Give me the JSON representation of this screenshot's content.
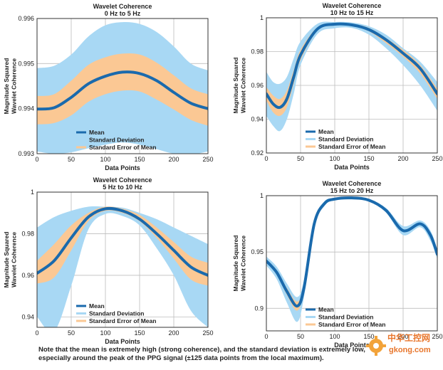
{
  "chart_data": [
    {
      "type": "line",
      "title": "Wavelet Coherence",
      "subtitle": "0 Hz to 5 Hz",
      "xlabel": "Data Points",
      "ylabel": [
        "Magnitude Squared",
        "Wavelet Coherence"
      ],
      "xlim": [
        0,
        250
      ],
      "ylim": [
        0.993,
        0.996
      ],
      "xticks": [
        0,
        50,
        100,
        150,
        200,
        250
      ],
      "xtick_labels": [
        "0",
        "50",
        "100",
        "150",
        "200",
        "250"
      ],
      "yticks": [
        0.993,
        0.994,
        0.995,
        0.996
      ],
      "ytick_labels": [
        "0.993",
        "0.994",
        "0.995",
        "0.996"
      ],
      "grid": true,
      "legend": "bottom-center",
      "x": [
        0,
        25,
        50,
        75,
        100,
        125,
        150,
        175,
        200,
        225,
        250
      ],
      "series": [
        {
          "name": "Mean",
          "color": "#1a6aad",
          "values": [
            0.99399,
            0.99402,
            0.99425,
            0.99455,
            0.99472,
            0.99481,
            0.99478,
            0.99462,
            0.99436,
            0.99412,
            0.994
          ]
        },
        {
          "name": "Standard Deviation",
          "color": "#a8d8f4",
          "lower": [
            0.99305,
            0.993,
            0.99303,
            0.99312,
            0.9932,
            0.99325,
            0.9932,
            0.9931,
            0.993,
            0.99298,
            0.99305
          ],
          "upper": [
            0.9949,
            0.99495,
            0.9952,
            0.9956,
            0.99585,
            0.99592,
            0.99588,
            0.9957,
            0.99538,
            0.995,
            0.99485
          ]
        },
        {
          "name": "Standard Error of Mean",
          "color": "#fbc894",
          "lower": [
            0.99365,
            0.99368,
            0.99385,
            0.99415,
            0.99432,
            0.9944,
            0.99438,
            0.9942,
            0.99398,
            0.99375,
            0.99362
          ],
          "upper": [
            0.99428,
            0.99432,
            0.99462,
            0.99497,
            0.99514,
            0.99522,
            0.9952,
            0.99502,
            0.99474,
            0.99445,
            0.99432
          ]
        }
      ]
    },
    {
      "type": "line",
      "title": "Wavelet Coherence",
      "subtitle": "10 Hz to 15 Hz",
      "xlabel": "Data Points",
      "ylabel": [
        "Magnitude Squared",
        "Wavelet Coherence"
      ],
      "xlim": [
        0,
        250
      ],
      "ylim": [
        0.92,
        1.0
      ],
      "xticks": [
        0,
        50,
        100,
        150,
        200,
        250
      ],
      "xtick_labels": [
        "0",
        "50",
        "100",
        "150",
        "200",
        "250"
      ],
      "yticks": [
        0.92,
        0.94,
        0.96,
        0.98,
        1.0
      ],
      "ytick_labels": [
        "0.92",
        "0.94",
        "0.96",
        "0.98",
        "1"
      ],
      "grid": true,
      "legend": "bottom-center",
      "x": [
        0,
        10,
        20,
        30,
        40,
        50,
        75,
        100,
        125,
        150,
        175,
        200,
        225,
        250
      ],
      "series": [
        {
          "name": "Mean",
          "color": "#1a6aad",
          "values": [
            0.955,
            0.949,
            0.947,
            0.952,
            0.965,
            0.978,
            0.9935,
            0.9962,
            0.9958,
            0.993,
            0.987,
            0.979,
            0.97,
            0.955
          ]
        },
        {
          "name": "Standard Deviation",
          "color": "#a8d8f4",
          "lower": [
            0.942,
            0.936,
            0.933,
            0.94,
            0.955,
            0.972,
            0.9905,
            0.9938,
            0.994,
            0.99,
            0.982,
            0.972,
            0.96,
            0.945
          ],
          "upper": [
            0.968,
            0.962,
            0.961,
            0.965,
            0.976,
            0.986,
            0.9965,
            0.9975,
            0.9972,
            0.995,
            0.99,
            0.982,
            0.974,
            0.962
          ]
        },
        {
          "name": "Standard Error of Mean",
          "color": "#fbc894",
          "lower": [
            0.951,
            0.944,
            0.942,
            0.947,
            0.961,
            0.975,
            0.9925,
            0.9955,
            0.9952,
            0.992,
            0.985,
            0.977,
            0.967,
            0.952
          ],
          "upper": [
            0.959,
            0.954,
            0.952,
            0.957,
            0.969,
            0.981,
            0.9945,
            0.9968,
            0.9964,
            0.994,
            0.988,
            0.981,
            0.972,
            0.958
          ]
        }
      ]
    },
    {
      "type": "line",
      "title": "Wavelet Coherence",
      "subtitle": "5 Hz to 10 Hz",
      "xlabel": "Data Points",
      "ylabel": [
        "Magnitude Squared",
        "Wavelet Coherence"
      ],
      "xlim": [
        0,
        250
      ],
      "ylim": [
        0.935,
        1.0
      ],
      "xticks": [
        0,
        50,
        100,
        150,
        200,
        250
      ],
      "xtick_labels": [
        "0",
        "50",
        "100",
        "150",
        "200",
        "250"
      ],
      "yticks": [
        0.94,
        0.96,
        0.98,
        1.0
      ],
      "ytick_labels": [
        "0.94",
        "0.96",
        "0.98",
        "1"
      ],
      "grid": true,
      "legend": "bottom-center",
      "x": [
        0,
        25,
        50,
        75,
        100,
        125,
        150,
        175,
        200,
        225,
        250
      ],
      "series": [
        {
          "name": "Mean",
          "color": "#1a6aad",
          "values": [
            0.961,
            0.967,
            0.978,
            0.988,
            0.992,
            0.991,
            0.987,
            0.98,
            0.972,
            0.964,
            0.96
          ]
        },
        {
          "name": "Standard Deviation",
          "color": "#a8d8f4",
          "lower": [
            0.94,
            0.933,
            0.955,
            0.982,
            0.9895,
            0.9885,
            0.984,
            0.973,
            0.96,
            0.943,
            0.935
          ],
          "upper": [
            0.983,
            0.988,
            0.991,
            0.993,
            0.993,
            0.9925,
            0.99,
            0.987,
            0.983,
            0.979,
            0.975
          ]
        },
        {
          "name": "Standard Error of Mean",
          "color": "#fbc894",
          "lower": [
            0.956,
            0.959,
            0.972,
            0.986,
            0.991,
            0.99,
            0.986,
            0.978,
            0.968,
            0.958,
            0.955
          ],
          "upper": [
            0.967,
            0.975,
            0.984,
            0.99,
            0.993,
            0.992,
            0.989,
            0.983,
            0.976,
            0.969,
            0.966
          ]
        }
      ]
    },
    {
      "type": "line",
      "title": "Wavelet Coherence",
      "subtitle": "15 Hz to 20 Hz",
      "xlabel": "Data Points",
      "ylabel": [
        "Magnitude Squared",
        "Wavelet Coherence"
      ],
      "xlim": [
        0,
        250
      ],
      "ylim": [
        0.88,
        1.0
      ],
      "xticks": [
        0,
        50,
        100,
        150,
        200,
        250
      ],
      "xtick_labels": [
        "0",
        "50",
        "100",
        "150",
        "200",
        "250"
      ],
      "yticks": [
        0.9,
        0.95,
        1.0
      ],
      "ytick_labels": [
        "0.9",
        "0.95",
        "1"
      ],
      "grid": true,
      "legend": "bottom-center",
      "x": [
        0,
        15,
        30,
        45,
        55,
        70,
        85,
        100,
        125,
        150,
        175,
        200,
        225,
        240,
        250
      ],
      "series": [
        {
          "name": "Mean",
          "color": "#1a6aad",
          "values": [
            0.942,
            0.932,
            0.915,
            0.902,
            0.918,
            0.975,
            0.993,
            0.997,
            0.998,
            0.996,
            0.987,
            0.969,
            0.975,
            0.965,
            0.948
          ]
        },
        {
          "name": "Standard Deviation",
          "color": "#a8d8f4",
          "lower": [
            0.938,
            0.926,
            0.905,
            0.888,
            0.91,
            0.972,
            0.991,
            0.996,
            0.997,
            0.995,
            0.985,
            0.965,
            0.972,
            0.96,
            0.944
          ],
          "upper": [
            0.946,
            0.937,
            0.922,
            0.91,
            0.925,
            0.978,
            0.995,
            0.998,
            0.999,
            0.997,
            0.989,
            0.973,
            0.978,
            0.969,
            0.952
          ]
        },
        {
          "name": "Standard Error of Mean",
          "color": "#fbc894",
          "lower": [
            0.941,
            0.93,
            0.912,
            0.898,
            0.916,
            0.974,
            0.9925,
            0.9966,
            0.9976,
            0.9956,
            0.9865,
            0.968,
            0.974,
            0.964,
            0.947
          ],
          "upper": [
            0.943,
            0.934,
            0.918,
            0.906,
            0.92,
            0.976,
            0.9935,
            0.9974,
            0.9984,
            0.9964,
            0.9875,
            0.97,
            0.976,
            0.966,
            0.949
          ]
        }
      ]
    }
  ],
  "note": {
    "line1": "Note that the mean is extremely high (strong coherence), and the standard deviation is extremely low,",
    "line2": "especially around the peak of the PPG signal (±125 data points from the local maximum)."
  },
  "watermark": {
    "cn": "中华工控网",
    "url": "gkong.com",
    "color": "#e8762c"
  }
}
